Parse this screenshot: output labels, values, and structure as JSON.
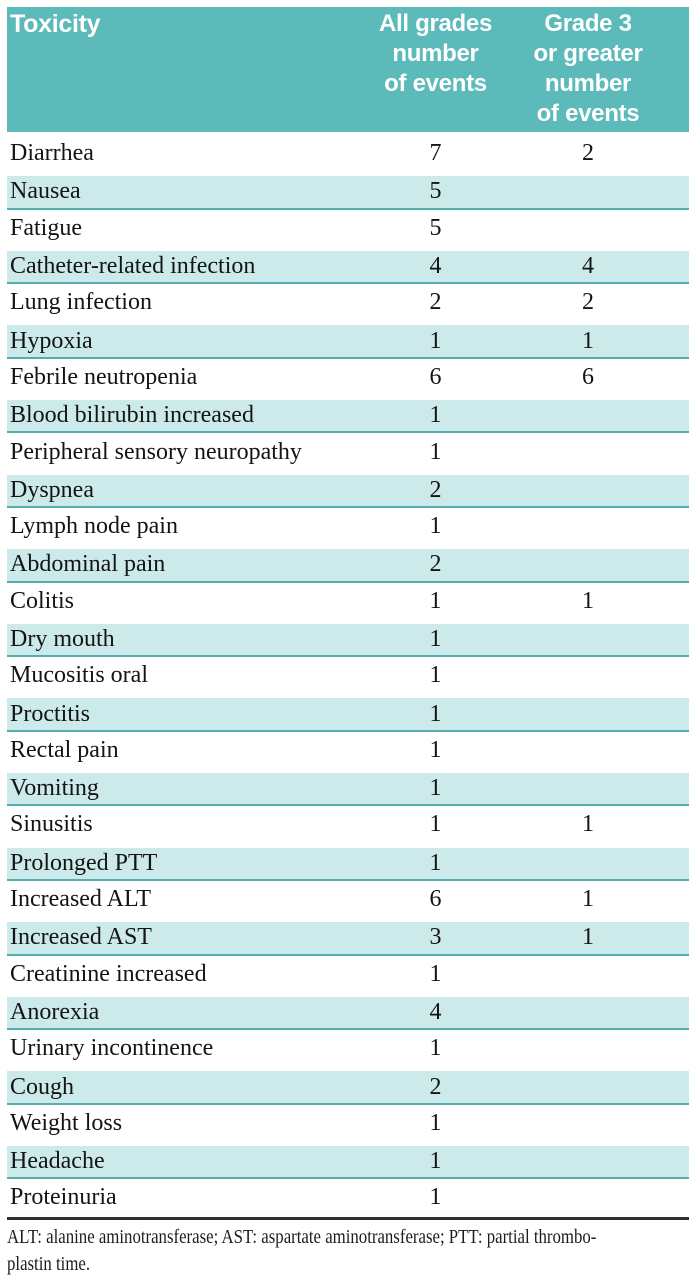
{
  "header": {
    "col_toxicity": "Toxicity",
    "col_all_grades": "All grades\nnumber\nof events",
    "col_grade3": "Grade 3\nor greater\nnumber\nof events"
  },
  "rows": [
    {
      "toxicity": "Diarrhea",
      "all_grades": "7",
      "grade3": "2"
    },
    {
      "toxicity": "Nausea",
      "all_grades": "5",
      "grade3": ""
    },
    {
      "toxicity": "Fatigue",
      "all_grades": "5",
      "grade3": ""
    },
    {
      "toxicity": "Catheter-related infection",
      "all_grades": "4",
      "grade3": "4"
    },
    {
      "toxicity": "Lung infection",
      "all_grades": "2",
      "grade3": "2"
    },
    {
      "toxicity": "Hypoxia",
      "all_grades": "1",
      "grade3": "1"
    },
    {
      "toxicity": "Febrile neutropenia",
      "all_grades": "6",
      "grade3": "6"
    },
    {
      "toxicity": "Blood bilirubin increased",
      "all_grades": "1",
      "grade3": ""
    },
    {
      "toxicity": "Peripheral sensory neuropathy",
      "all_grades": "1",
      "grade3": ""
    },
    {
      "toxicity": "Dyspnea",
      "all_grades": "2",
      "grade3": ""
    },
    {
      "toxicity": "Lymph node pain",
      "all_grades": "1",
      "grade3": ""
    },
    {
      "toxicity": "Abdominal pain",
      "all_grades": "2",
      "grade3": ""
    },
    {
      "toxicity": "Colitis",
      "all_grades": "1",
      "grade3": "1"
    },
    {
      "toxicity": "Dry mouth",
      "all_grades": "1",
      "grade3": ""
    },
    {
      "toxicity": "Mucositis oral",
      "all_grades": "1",
      "grade3": ""
    },
    {
      "toxicity": "Proctitis",
      "all_grades": "1",
      "grade3": ""
    },
    {
      "toxicity": "Rectal pain",
      "all_grades": "1",
      "grade3": ""
    },
    {
      "toxicity": "Vomiting",
      "all_grades": "1",
      "grade3": ""
    },
    {
      "toxicity": "Sinusitis",
      "all_grades": "1",
      "grade3": "1"
    },
    {
      "toxicity": "Prolonged PTT",
      "all_grades": "1",
      "grade3": ""
    },
    {
      "toxicity": "Increased ALT",
      "all_grades": "6",
      "grade3": "1"
    },
    {
      "toxicity": "Increased AST",
      "all_grades": "3",
      "grade3": "1"
    },
    {
      "toxicity": "Creatinine increased",
      "all_grades": "1",
      "grade3": ""
    },
    {
      "toxicity": "Anorexia",
      "all_grades": "4",
      "grade3": ""
    },
    {
      "toxicity": "Urinary incontinence",
      "all_grades": "1",
      "grade3": ""
    },
    {
      "toxicity": "Cough",
      "all_grades": "2",
      "grade3": ""
    },
    {
      "toxicity": "Weight loss",
      "all_grades": "1",
      "grade3": ""
    },
    {
      "toxicity": "Headache",
      "all_grades": "1",
      "grade3": ""
    },
    {
      "toxicity": "Proteinuria",
      "all_grades": "1",
      "grade3": ""
    }
  ],
  "footnote": "ALT: alanine aminotransferase; AST: aspartate aminotransferase; PTT: partial thrombo-\nplastin time.",
  "colors": {
    "header_bg": "#5cbabb",
    "header_text": "#ffffff",
    "row_alt_bg": "#cdeaea",
    "row_alt_border": "#54aeb0",
    "body_text": "#141414",
    "bottom_rule": "#2f2f2f"
  }
}
